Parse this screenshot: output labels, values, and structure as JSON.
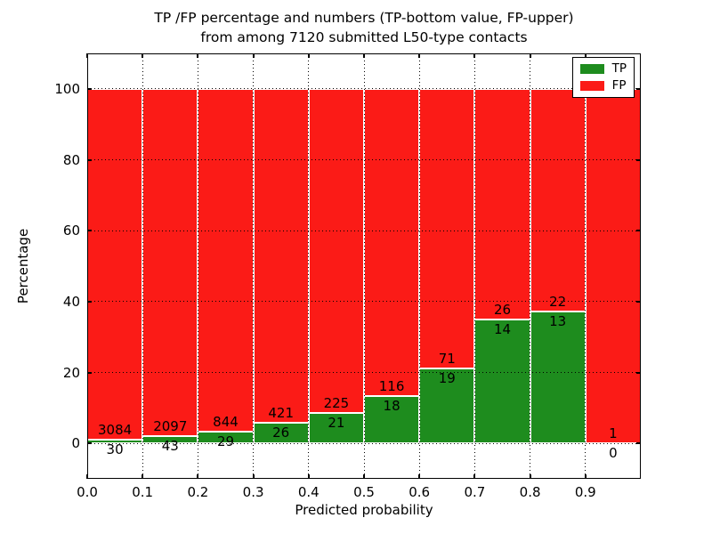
{
  "figure": {
    "title_line1": "TP /FP percentage and numbers (TP-bottom value, FP-upper)",
    "title_line2": "from among 7120 submitted L50-type contacts"
  },
  "chart_data": {
    "type": "bar",
    "stacked": true,
    "title": "TP /FP percentage and numbers (TP-bottom value, FP-upper) from among 7120 submitted L50-type contacts",
    "xlabel": "Predicted probability",
    "ylabel": "Percentage",
    "xlim": [
      0.0,
      1.0
    ],
    "ylim": [
      -10,
      110
    ],
    "grid": "dotted",
    "legend_position": "upper right",
    "y_ticks": [
      0,
      20,
      40,
      60,
      80,
      100
    ],
    "y_tick_labels": [
      "0",
      "20",
      "40",
      "60",
      "80",
      "100"
    ],
    "x_tick_labels": [
      "0.0",
      "0.1",
      "0.2",
      "0.3",
      "0.4",
      "0.5",
      "0.6",
      "0.7",
      "0.8",
      "0.9"
    ],
    "bin_edges": [
      0.0,
      0.1,
      0.2,
      0.3,
      0.4,
      0.5,
      0.6,
      0.7,
      0.8,
      0.9,
      1.0
    ],
    "categories": [
      "0.0-0.1",
      "0.1-0.2",
      "0.2-0.3",
      "0.3-0.4",
      "0.4-0.5",
      "0.5-0.6",
      "0.6-0.7",
      "0.7-0.8",
      "0.8-0.9",
      "0.9-1.0"
    ],
    "series": [
      {
        "name": "TP",
        "color": "#1e8c1e",
        "counts": [
          30,
          43,
          29,
          26,
          21,
          18,
          19,
          14,
          13,
          0
        ]
      },
      {
        "name": "FP",
        "color": "#fb1b17",
        "counts": [
          3084,
          2097,
          844,
          421,
          225,
          116,
          71,
          26,
          22,
          1
        ]
      }
    ],
    "bar_display": "each bin normalized to 100%; TP segment at bottom with its count labeled below the segment top, FP segment above with its count labeled above the TP/FP boundary"
  }
}
